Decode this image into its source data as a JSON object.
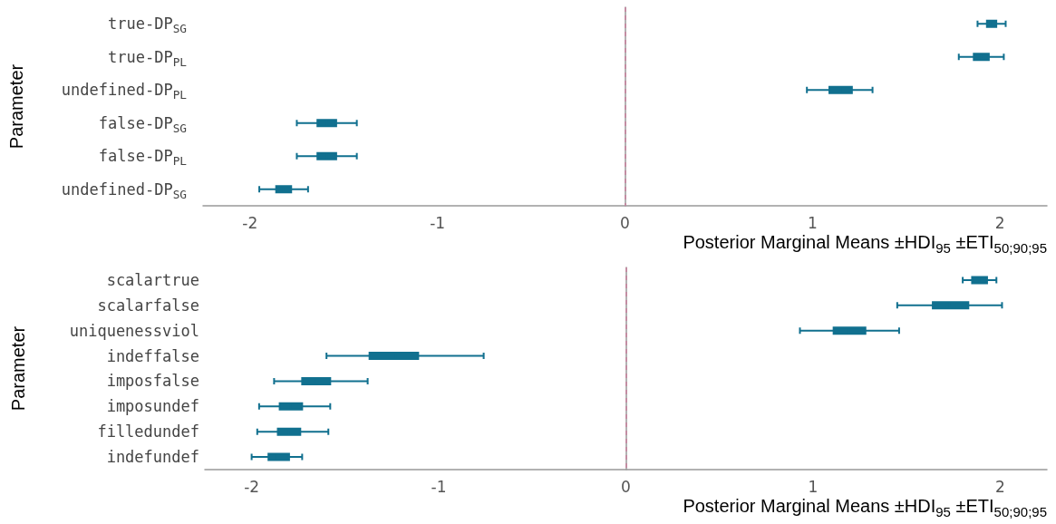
{
  "chart_data": [
    {
      "type": "box",
      "orientation": "horizontal",
      "xlabel": "Posterior Marginal Means ±HDI$_{95}$ ±ETI$_{50;90;95}$",
      "ylabel": "Parameter",
      "categories": [
        "true-DP$_{SG}$",
        "true-DP$_{PL}$",
        "undefined-DP$_{PL}$",
        "false-DP$_{SG}$",
        "false-DP$_{PL}$",
        "undefined-DP$_{SG}$"
      ],
      "series": [
        {
          "color": "#11708f",
          "boxes": [
            {
              "low": 1.88,
              "q1": 1.93,
              "median": 1.95,
              "q3": 1.98,
              "high": 2.03
            },
            {
              "low": 1.78,
              "q1": 1.86,
              "median": 1.9,
              "q3": 1.94,
              "high": 2.02
            },
            {
              "low": 0.97,
              "q1": 1.09,
              "median": 1.15,
              "q3": 1.21,
              "high": 1.32
            },
            {
              "low": -1.75,
              "q1": -1.64,
              "median": -1.59,
              "q3": -1.54,
              "high": -1.43
            },
            {
              "low": -1.75,
              "q1": -1.64,
              "median": -1.59,
              "q3": -1.54,
              "high": -1.43
            },
            {
              "low": -1.95,
              "q1": -1.86,
              "median": -1.82,
              "q3": -1.78,
              "high": -1.69
            }
          ]
        }
      ],
      "xlim": [
        -2.25,
        2.25
      ],
      "xticks": [
        -2,
        -1,
        0,
        1,
        2
      ],
      "grid": false,
      "ref_lines": [
        {
          "axis": "x",
          "value": 0,
          "color": "#c9819f",
          "line_style": "dashed"
        }
      ]
    },
    {
      "type": "box",
      "orientation": "horizontal",
      "xlabel": "Posterior Marginal Means ±HDI$_{95}$ ±ETI$_{50;90;95}$",
      "ylabel": "Parameter",
      "categories": [
        "scalartrue",
        "scalarfalse",
        "uniquenessviol",
        "indeffalse",
        "imposfalse",
        "imposundef",
        "filledundef",
        "indefundef"
      ],
      "series": [
        {
          "color": "#11708f",
          "boxes": [
            {
              "low": 1.8,
              "q1": 1.85,
              "median": 1.89,
              "q3": 1.93,
              "high": 1.98
            },
            {
              "low": 1.45,
              "q1": 1.64,
              "median": 1.73,
              "q3": 1.83,
              "high": 2.01
            },
            {
              "low": 0.93,
              "q1": 1.11,
              "median": 1.19,
              "q3": 1.28,
              "high": 1.46
            },
            {
              "low": -1.6,
              "q1": -1.37,
              "median": -1.23,
              "q3": -1.11,
              "high": -0.76
            },
            {
              "low": -1.88,
              "q1": -1.73,
              "median": -1.66,
              "q3": -1.58,
              "high": -1.38
            },
            {
              "low": -1.96,
              "q1": -1.85,
              "median": -1.79,
              "q3": -1.73,
              "high": -1.58
            },
            {
              "low": -1.97,
              "q1": -1.86,
              "median": -1.8,
              "q3": -1.74,
              "high": -1.59
            },
            {
              "low": -2.0,
              "q1": -1.91,
              "median": -1.87,
              "q3": -1.8,
              "high": -1.73
            }
          ]
        }
      ],
      "xlim": [
        -2.25,
        2.25
      ],
      "xticks": [
        -2,
        -1,
        0,
        1,
        2
      ],
      "grid": false,
      "ref_lines": [
        {
          "axis": "x",
          "value": 0,
          "color": "#c9819f",
          "line_style": "dashed"
        }
      ]
    }
  ]
}
